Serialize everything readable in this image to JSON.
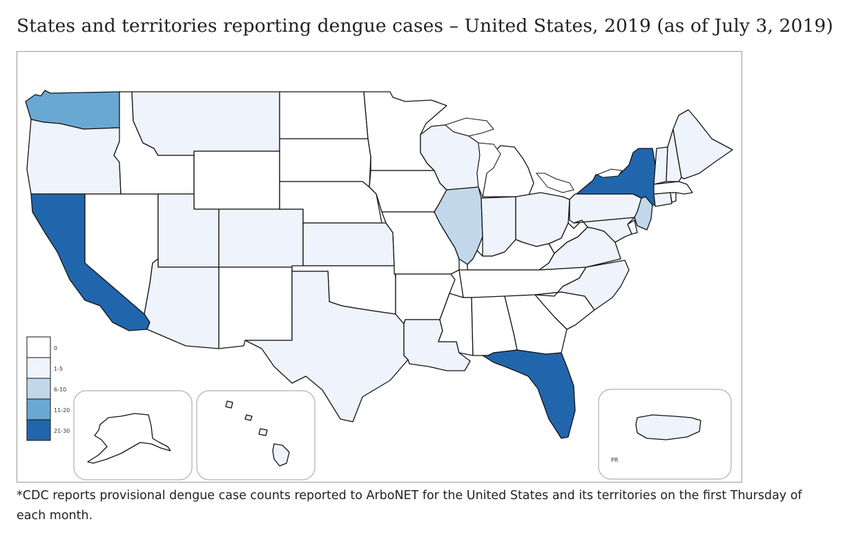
{
  "title": "States and territories reporting dengue cases – United States, 2019 (as of July 3, 2019)",
  "footnote": "*CDC reports provisional dengue case counts reported to ArboNET for the United States and its territories on the first Thursday of each month.",
  "legend": {
    "bins": [
      {
        "label": "0",
        "color": "#ffffff"
      },
      {
        "label": "1-5",
        "color": "#eff3fb"
      },
      {
        "label": "6-10",
        "color": "#c2d8ea"
      },
      {
        "label": "11-20",
        "color": "#6aa8d4"
      },
      {
        "label": "21-30",
        "color": "#2166ac"
      }
    ]
  },
  "insets": {
    "puerto_rico_label": "PR"
  },
  "state_bins": {
    "WA": "11-20",
    "OR": "1-5",
    "CA": "21-30",
    "NV": "0",
    "ID": "0",
    "MT": "1-5",
    "WY": "0",
    "UT": "1-5",
    "AZ": "1-5",
    "CO": "1-5",
    "NM": "0",
    "ND": "0",
    "SD": "0",
    "NE": "0",
    "KS": "1-5",
    "OK": "0",
    "TX": "1-5",
    "MN": "0",
    "IA": "0",
    "MO": "0",
    "AR": "0",
    "LA": "1-5",
    "WI": "1-5",
    "IL": "6-10",
    "MI": "0",
    "IN": "1-5",
    "OH": "1-5",
    "KY": "0",
    "TN": "0",
    "MS": "0",
    "AL": "0",
    "GA": "0",
    "FL": "21-30",
    "SC": "0",
    "NC": "1-5",
    "VA": "1-5",
    "WV": "0",
    "PA": "1-5",
    "NY": "21-30",
    "NJ": "6-10",
    "DE": "0",
    "MD": "1-5",
    "CT": "1-5",
    "RI": "0",
    "MA": "0",
    "VT": "1-5",
    "NH": "1-5",
    "ME": "1-5",
    "AK": "0",
    "HI": "1-5",
    "PR": "1-5"
  }
}
